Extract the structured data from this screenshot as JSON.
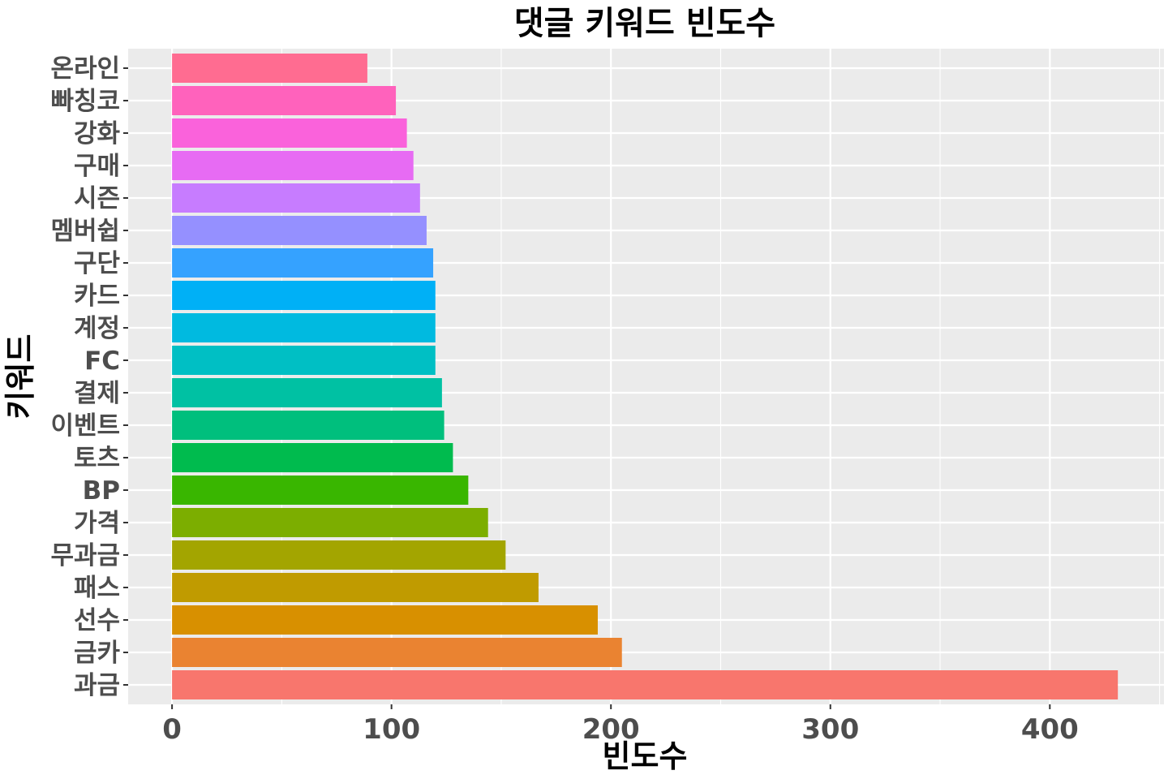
{
  "chart_data": {
    "type": "bar",
    "orientation": "horizontal",
    "title": "댓글 키워드 빈도수",
    "xlabel": "빈도수",
    "ylabel": "키워드",
    "xlim": [
      -20,
      452
    ],
    "xticks": [
      0,
      100,
      200,
      300,
      400
    ],
    "grid": true,
    "legend": "none",
    "panel_color": "#ebebeb",
    "categories": [
      "과금",
      "금카",
      "선수",
      "패스",
      "무과금",
      "가격",
      "BP",
      "토츠",
      "이벤트",
      "결제",
      "FC",
      "계정",
      "카드",
      "구단",
      "멤버쉽",
      "시즌",
      "구매",
      "강화",
      "빠칭코",
      "온라인"
    ],
    "values": [
      431,
      205,
      194,
      167,
      152,
      144,
      135,
      128,
      124,
      123,
      120,
      120,
      120,
      119,
      116,
      113,
      110,
      107,
      102,
      89
    ],
    "colors": [
      "#F8766D",
      "#EA8331",
      "#D89000",
      "#C09B00",
      "#A3A500",
      "#7CAE00",
      "#39B600",
      "#00BB4E",
      "#00BF7D",
      "#00C1A3",
      "#00BFC4",
      "#00BAE0",
      "#00B0F6",
      "#35A2FF",
      "#9590FF",
      "#C77CFF",
      "#E76BF3",
      "#FA62DB",
      "#FF62BC",
      "#FF6C91"
    ]
  }
}
